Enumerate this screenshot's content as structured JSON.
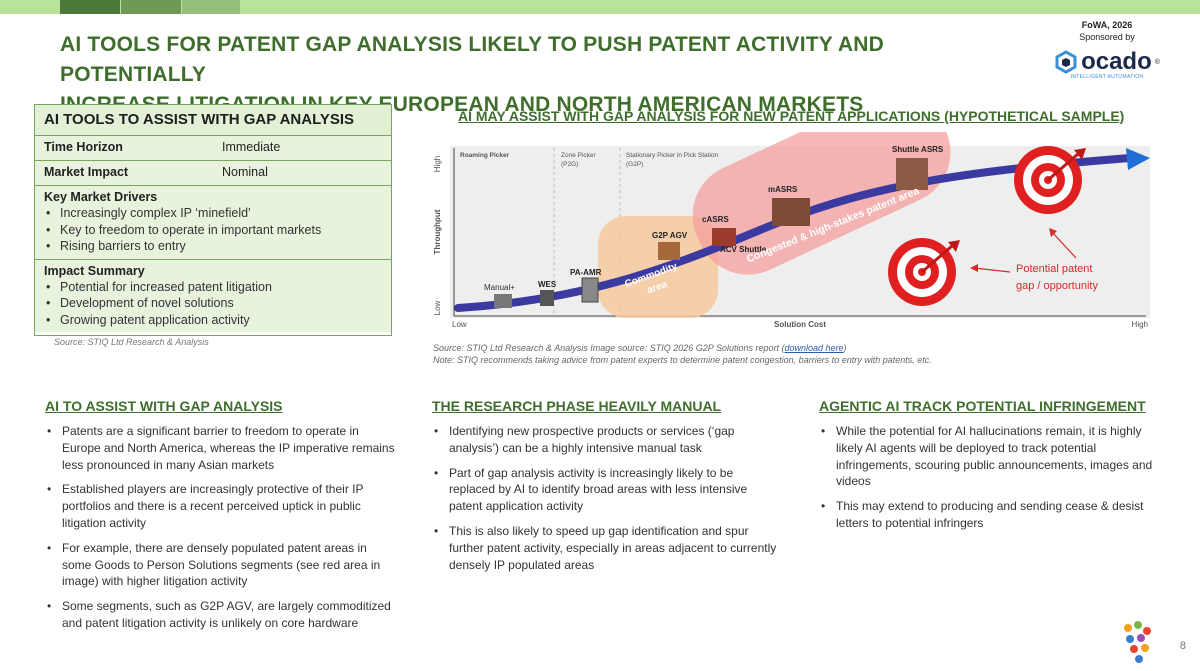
{
  "header": {
    "title_line1": "AI TOOLS FOR PATENT GAP ANALYSIS LIKELY TO PUSH PATENT ACTIVITY AND POTENTIALLY",
    "title_line2": "INCREASE LITIGATION IN KEY EUROPEAN AND NORTH AMERICAN MARKETS",
    "event": "FoWA, 2026",
    "sponsored_by": "Sponsored by",
    "sponsor_logo": "ocado",
    "sponsor_tagline": "INTELLIGENT AUTOMATION",
    "accent_color": "#3f6e2c",
    "bar_colors": [
      "#4d7a3a",
      "#6f9a56",
      "#94bf78",
      "#b9e39a"
    ]
  },
  "summary": {
    "title": "AI TOOLS TO ASSIST WITH GAP ANALYSIS",
    "time_horizon_label": "Time Horizon",
    "time_horizon_value": "Immediate",
    "market_impact_label": "Market Impact",
    "market_impact_value": "Nominal",
    "drivers_heading": "Key Market Drivers",
    "drivers": [
      "Increasingly complex IP ‘minefield’",
      "Key to freedom to operate in important markets",
      "Rising barriers to entry"
    ],
    "impact_heading": "Impact Summary",
    "impacts": [
      "Potential for increased patent litigation",
      "Development of novel solutions",
      "Growing patent application activity"
    ],
    "source": "Source: STIQ Ltd Research & Analysis"
  },
  "chart": {
    "title": "AI MAY ASSIST WITH GAP ANALYSIS FOR NEW PATENT APPLICATIONS (HYPOTHETICAL SAMPLE)",
    "y_axis_label": "Throughput",
    "y_high": "High",
    "y_low": "Low",
    "x_axis_label": "Solution Cost",
    "x_low": "Low",
    "x_high": "High",
    "segment_labels": [
      "Roaming Picker",
      "Zone Picker",
      "(P2G)",
      "Stationary Picker in Pick Station",
      "(G2P)"
    ],
    "solutions": [
      "Manual+",
      "WES",
      "PA-AMR",
      "G2P AGV",
      "cASRS",
      "ACV Shuttle",
      "mASRS",
      "Shuttle ASRS"
    ],
    "commodity_label_1": "Commodity",
    "commodity_label_2": "area",
    "congested_label": "Congested & high-stakes patent area",
    "opportunity_label_1": "Potential patent",
    "opportunity_label_2": "gap / opportunity",
    "source_prefix": "Source: STIQ Ltd Research & Analysis Image source: STIQ 2026 G2P Solutions report (",
    "source_link": "download here",
    "source_suffix": ")",
    "note": "Note: STIQ recommends taking advice from patent experts to determine patent congestion, barriers to entry with patents, etc."
  },
  "columns": [
    {
      "heading": "AI TO ASSIST WITH GAP ANALYSIS",
      "bullets": [
        "Patents are a significant barrier to freedom to operate in Europe and North America, whereas the IP imperative remains less pronounced in many Asian markets",
        "Established players are increasingly protective of their IP portfolios and there is a recent perceived uptick in public litigation activity",
        "For example, there are densely populated patent areas in some Goods to Person Solutions segments (see red area in image) with higher litigation activity",
        "Some segments, such as G2P AGV, are largely commoditized and patent litigation activity is unlikely on core hardware"
      ]
    },
    {
      "heading": "THE RESEARCH PHASE HEAVILY MANUAL",
      "bullets": [
        "Identifying new prospective products or services (‘gap analysis’) can be a highly intensive manual task",
        "Part of gap analysis activity is increasingly likely to be replaced by AI to identify broad areas with less intensive patent application activity",
        "This is also likely to speed up gap identification and spur further patent activity, especially in areas adjacent to currently densely IP populated areas"
      ]
    },
    {
      "heading": "AGENTIC AI TRACK POTENTIAL INFRINGEMENT",
      "bullets": [
        "While the potential for AI hallucinations remain, it is highly likely AI agents will be deployed to track potential infringements, scouring public announcements, images and videos",
        "This may extend to producing and sending cease & desist letters to potential infringers"
      ]
    }
  ],
  "page_number": "8"
}
